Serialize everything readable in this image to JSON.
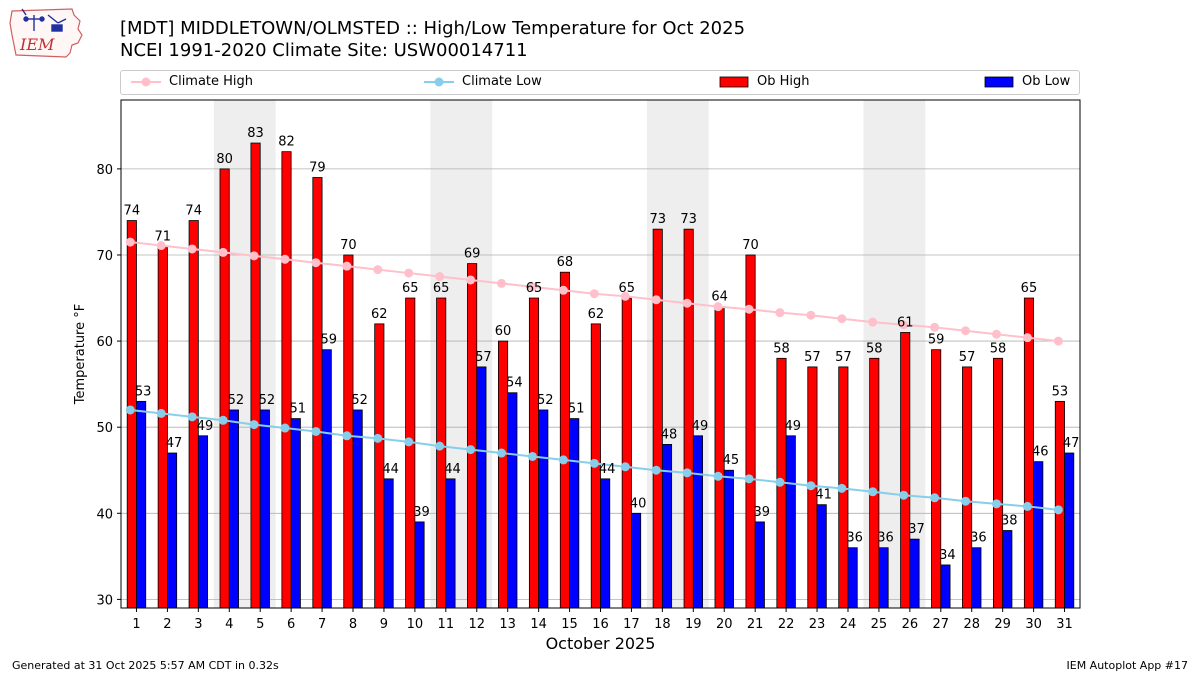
{
  "header": {
    "title_line1": "[MDT] MIDDLETOWN/OLMSTED :: High/Low Temperature for Oct 2025",
    "title_line2": "NCEI 1991-2020 Climate Site: USW00014711"
  },
  "logo": {
    "text": "IEM"
  },
  "footer": {
    "generated": "Generated at 31 Oct 2025 5:57 AM CDT in 0.32s",
    "app": "IEM Autoplot App #17"
  },
  "colors": {
    "ob_high": "#ff0000",
    "ob_low": "#0000ff",
    "climate_high": "#ffc0cb",
    "climate_low": "#87ceeb",
    "weekend_shade": "#eeeeee"
  },
  "chart_data": {
    "type": "bar",
    "title": "[MDT] MIDDLETOWN/OLMSTED :: High/Low Temperature for Oct 2025",
    "xlabel": "October 2025",
    "ylabel": "Temperature °F",
    "ylim": [
      29,
      88
    ],
    "yticks": [
      30,
      40,
      50,
      60,
      70,
      80
    ],
    "grid": true,
    "legend_placement": "top",
    "categories": [
      "1",
      "2",
      "3",
      "4",
      "5",
      "6",
      "7",
      "8",
      "9",
      "10",
      "11",
      "12",
      "13",
      "14",
      "15",
      "16",
      "17",
      "18",
      "19",
      "20",
      "21",
      "22",
      "23",
      "24",
      "25",
      "26",
      "27",
      "28",
      "29",
      "30",
      "31"
    ],
    "shaded_days": [
      [
        4,
        5
      ],
      [
        11,
        12
      ],
      [
        18,
        19
      ],
      [
        25,
        26
      ]
    ],
    "series": [
      {
        "name": "Ob High",
        "kind": "bar",
        "values": [
          74,
          71,
          74,
          80,
          83,
          82,
          79,
          70,
          62,
          65,
          65,
          69,
          60,
          65,
          68,
          62,
          65,
          73,
          73,
          64,
          70,
          58,
          57,
          57,
          58,
          61,
          59,
          57,
          58,
          65,
          53
        ]
      },
      {
        "name": "Ob Low",
        "kind": "bar",
        "values": [
          53,
          47,
          49,
          52,
          52,
          51,
          59,
          52,
          44,
          39,
          44,
          57,
          54,
          52,
          51,
          44,
          40,
          48,
          49,
          45,
          39,
          49,
          41,
          36,
          36,
          37,
          34,
          36,
          38,
          46,
          47
        ]
      },
      {
        "name": "Climate High",
        "kind": "line",
        "values": [
          71.5,
          71.1,
          70.7,
          70.3,
          69.9,
          69.5,
          69.1,
          68.7,
          68.3,
          67.9,
          67.5,
          67.1,
          66.7,
          66.3,
          65.9,
          65.5,
          65.2,
          64.8,
          64.4,
          64.0,
          63.7,
          63.3,
          63.0,
          62.6,
          62.2,
          61.9,
          61.6,
          61.2,
          60.8,
          60.4,
          60.0
        ]
      },
      {
        "name": "Climate Low",
        "kind": "line",
        "values": [
          52.0,
          51.6,
          51.2,
          50.8,
          50.3,
          49.9,
          49.5,
          49.0,
          48.7,
          48.3,
          47.8,
          47.4,
          47.0,
          46.6,
          46.2,
          45.8,
          45.4,
          45.0,
          44.7,
          44.3,
          44.0,
          43.6,
          43.2,
          42.9,
          42.5,
          42.1,
          41.8,
          41.4,
          41.1,
          40.8,
          40.4
        ]
      }
    ]
  }
}
